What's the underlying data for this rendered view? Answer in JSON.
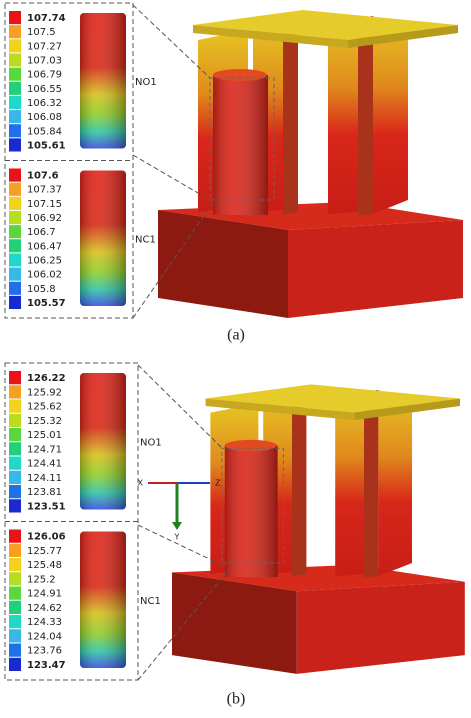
{
  "panels": [
    {
      "caption": "(a)",
      "legends": [
        {
          "name": "NO1",
          "values": [
            107.74,
            107.5,
            107.27,
            107.03,
            106.79,
            106.55,
            106.32,
            106.08,
            105.84,
            105.61
          ]
        },
        {
          "name": "NC1",
          "values": [
            107.6,
            107.37,
            107.15,
            106.92,
            106.7,
            106.47,
            106.25,
            106.02,
            105.8,
            105.57
          ]
        }
      ]
    },
    {
      "caption": "(b)",
      "axes": [
        "X",
        "Y",
        "Z"
      ],
      "legends": [
        {
          "name": "NO1",
          "values": [
            126.22,
            125.92,
            125.62,
            125.32,
            125.01,
            124.71,
            124.41,
            124.11,
            123.81,
            123.51
          ]
        },
        {
          "name": "NC1",
          "values": [
            126.06,
            125.77,
            125.48,
            125.2,
            124.91,
            124.62,
            124.33,
            124.04,
            123.76,
            123.47
          ]
        }
      ]
    }
  ]
}
